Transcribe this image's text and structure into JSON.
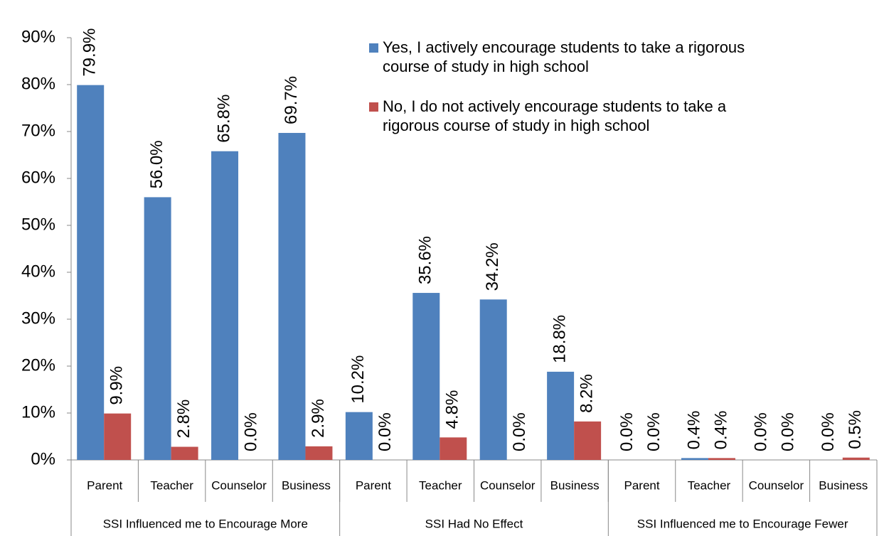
{
  "chart_data": {
    "type": "bar",
    "categories": [
      "Parent",
      "Teacher",
      "Counselor",
      "Business",
      "Parent",
      "Teacher",
      "Counselor",
      "Business",
      "Parent",
      "Teacher",
      "Counselor",
      "Business"
    ],
    "groups": [
      "SSI Influenced me to Encourage More",
      "SSI Had No Effect",
      "SSI Influenced me to Encourage Fewer"
    ],
    "series": [
      {
        "name": "Yes, I actively encourage students to take a rigorous course of study in high school",
        "color": "#4f81bd",
        "values": [
          79.9,
          56.0,
          65.8,
          69.7,
          10.2,
          35.6,
          34.2,
          18.8,
          0.0,
          0.4,
          0.0,
          0.0
        ],
        "value_labels": [
          "79.9%",
          "56.0%",
          "65.8%",
          "69.7%",
          "10.2%",
          "35.6%",
          "34.2%",
          "18.8%",
          "0.0%",
          "0.4%",
          "0.0%",
          "0.0%"
        ]
      },
      {
        "name": "No, I do not actively encourage students to take a rigorous course of study in high school",
        "color": "#c0504d",
        "values": [
          9.9,
          2.8,
          0.0,
          2.9,
          0.0,
          4.8,
          0.0,
          8.2,
          0.0,
          0.4,
          0.0,
          0.5
        ],
        "value_labels": [
          "9.9%",
          "2.8%",
          "0.0%",
          "2.9%",
          "0.0%",
          "4.8%",
          "0.0%",
          "8.2%",
          "0.0%",
          "0.4%",
          "0.0%",
          "0.5%"
        ]
      }
    ],
    "ylim": [
      0,
      90
    ],
    "yticks": [
      {
        "value": 0,
        "label": "0%"
      },
      {
        "value": 10,
        "label": "10%"
      },
      {
        "value": 20,
        "label": "20%"
      },
      {
        "value": 30,
        "label": "30%"
      },
      {
        "value": 40,
        "label": "40%"
      },
      {
        "value": 50,
        "label": "50%"
      },
      {
        "value": 60,
        "label": "60%"
      },
      {
        "value": 70,
        "label": "70%"
      },
      {
        "value": 80,
        "label": "80%"
      },
      {
        "value": 90,
        "label": "90%"
      }
    ],
    "grid": false,
    "legend": "top-right"
  }
}
